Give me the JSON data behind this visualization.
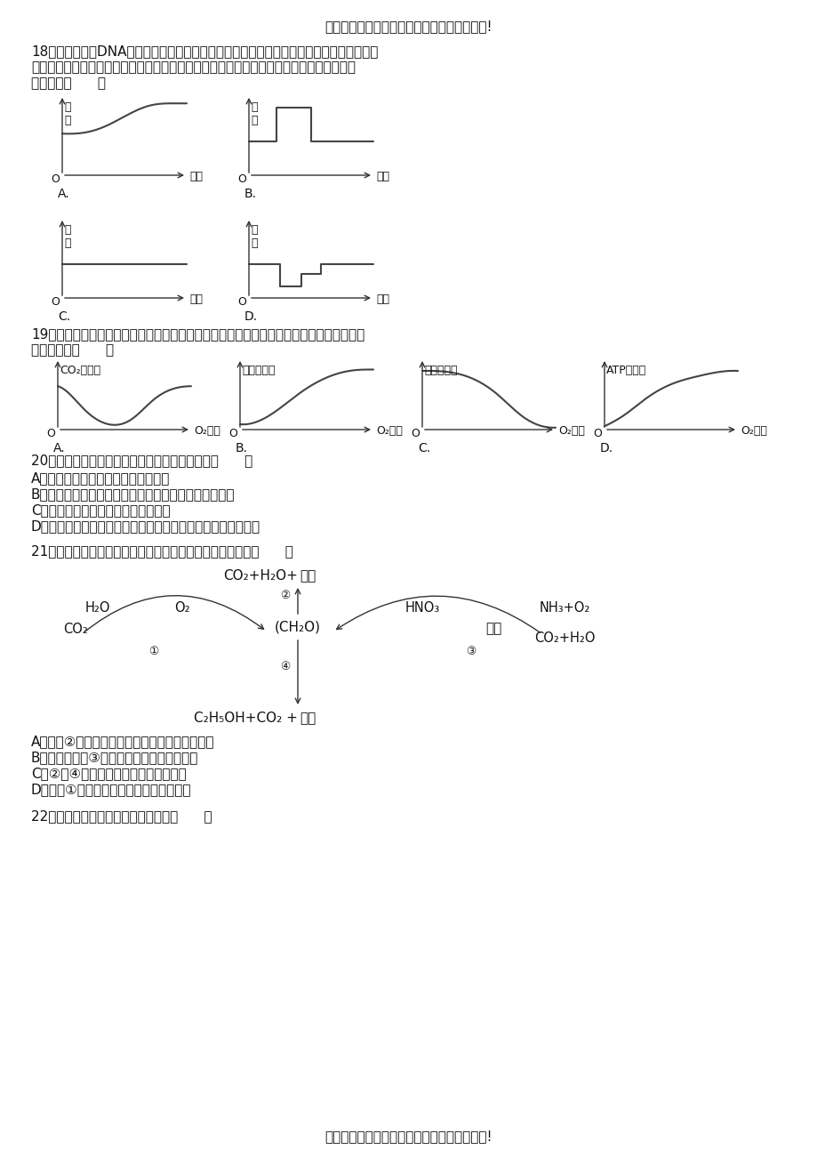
{
  "bg_color": "#ffffff",
  "header": "欢迎阅读本文档，希望本文档能对您有所帮助!",
  "footer": "欢迎阅读本文档，希望本文档能对您有所帮助!",
  "q18_line1": "18．真核细胞的DNA是随着染色体的复制而复制的．研究表明，真核生物染色体的复制不是",
  "q18_line2": "同步的，有的先复制成功，有的后复制成功．图中能真实反映染色体复制过程中染色体数目",
  "q18_line3": "变化的是（      ）",
  "q19_line1": "19．如图表示在一个固定容积的培养液中，一定时间内酵母菌相关指标与氧气浓度的关系，",
  "q19_line2": "不正确的是（      ）",
  "q20_line1": "20．种植农作物，必须考虑通风的问题．原因是（      ）",
  "q20_a": "A．需要增加作物叶片吸收光能的面积",
  "q20_b": "B．必须降低作物周围环境的温度才能增加有机物的积累",
  "q20_c": "C．需要增加植株周围的二氧化碳浓度",
  "q20_d": "D．必须降低作物周围空气中氧气的浓度以减少细胞的有氧呼吸",
  "q21_line1": "21．如图所示生物体部分代谢过程．下列有关分析正确的是（      ）",
  "q21_a": "A．过程②需要的酶均存在于线粒体内膜和基质上",
  "q21_b": "B．能进行过程③的生物无核膜，属于生产者",
  "q21_c": "C．②和④过程只能发生于不同的细胞中",
  "q21_d": "D．过程①只能在植物细胞的叶绿体中进行",
  "q22_line1": "22．下列物质或结构中含有糖类的是（      ）",
  "line_color": "#333333",
  "text_color": "#1a1a1a"
}
